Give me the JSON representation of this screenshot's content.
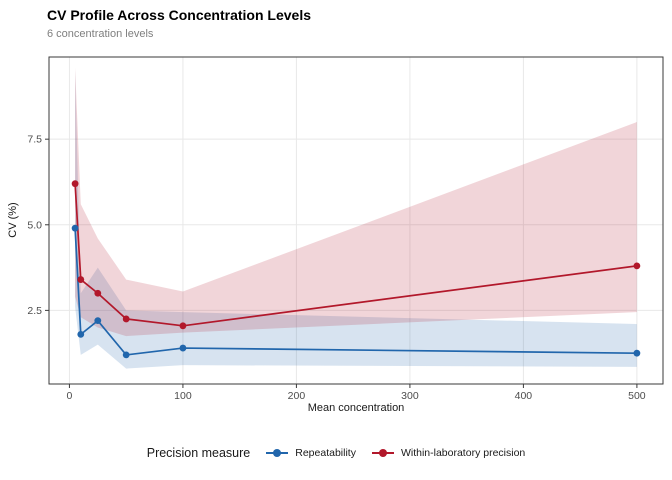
{
  "title": "CV Profile Across Concentration Levels",
  "subtitle": "6 concentration levels",
  "chart_data": {
    "type": "line",
    "title": "CV Profile Across Concentration Levels",
    "subtitle": "6 concentration levels",
    "xlabel": "Mean concentration",
    "ylabel": "CV (%)",
    "x": [
      5,
      10,
      25,
      50,
      100,
      500
    ],
    "x_ticks": [
      0,
      100,
      200,
      300,
      400,
      500
    ],
    "y_ticks": [
      "2.5",
      "5.0",
      "7.5"
    ],
    "xlim": [
      -18,
      523
    ],
    "ylim": [
      0.35,
      9.9
    ],
    "grid": "major",
    "gridline_color": "#e8e8e8",
    "axis_line_color": "#3a3a3a",
    "tick_label_color": "#4d4d4d",
    "legend_title": "Precision measure",
    "legend_position": "bottom",
    "series": [
      {
        "name": "Repeatability",
        "color": "#2166ac",
        "ribbon_opacity": 0.18,
        "values": [
          4.9,
          1.8,
          2.2,
          1.2,
          1.4,
          1.25
        ],
        "ci_lower": [
          2.6,
          1.2,
          1.5,
          0.8,
          0.9,
          0.85
        ],
        "ci_upper": [
          9.5,
          3.0,
          3.75,
          2.5,
          2.45,
          2.1
        ]
      },
      {
        "name": "Within-laboratory precision",
        "color": "#b2182b",
        "ribbon_opacity": 0.18,
        "values": [
          6.2,
          3.4,
          3.0,
          2.25,
          2.05,
          3.8
        ],
        "ci_lower": [
          2.9,
          2.3,
          2.0,
          1.75,
          1.85,
          2.45
        ],
        "ci_upper": [
          9.6,
          5.6,
          4.6,
          3.4,
          3.05,
          8.0
        ]
      }
    ]
  }
}
